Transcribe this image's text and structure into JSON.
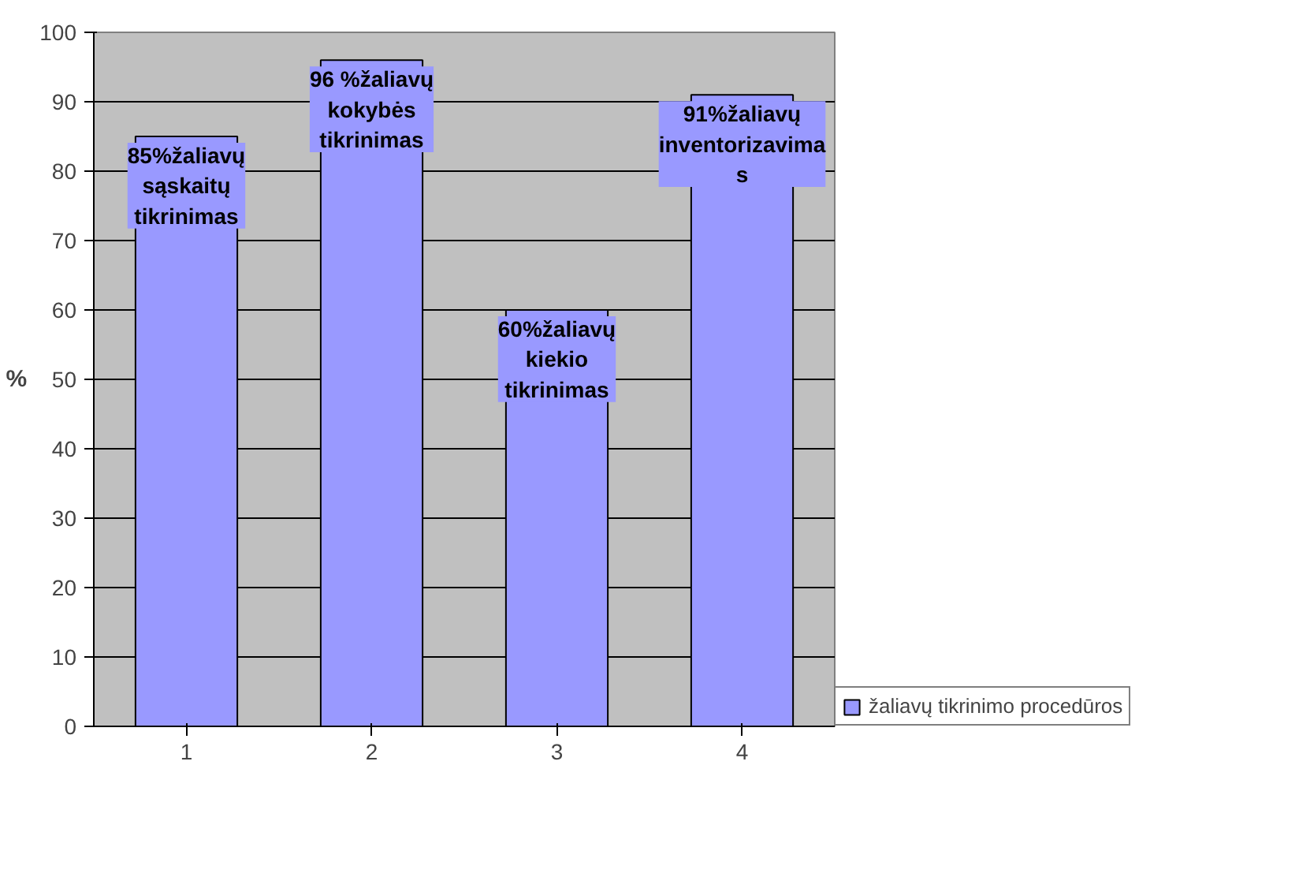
{
  "chart_data": {
    "type": "bar",
    "ylabel": "%",
    "categories": [
      "1",
      "2",
      "3",
      "4"
    ],
    "series": [
      {
        "name": "žaliavų tikrinimo procedūros",
        "color": "#9999ff",
        "values": [
          85,
          96,
          60,
          91
        ]
      }
    ],
    "value_labels": [
      "85%žaliavų\nsąskaitų\ntikrinimas",
      "96 %žaliavų\nkokybės\ntikrinimas",
      "60%žaliavų\nkiekio\ntikrinimas",
      "91%žaliavų\ninventorizavima\ns"
    ],
    "ylim": [
      0,
      100
    ],
    "yticks": [
      0,
      10,
      20,
      30,
      40,
      50,
      60,
      70,
      80,
      90,
      100
    ],
    "grid": "y",
    "legend": "bottom right"
  }
}
